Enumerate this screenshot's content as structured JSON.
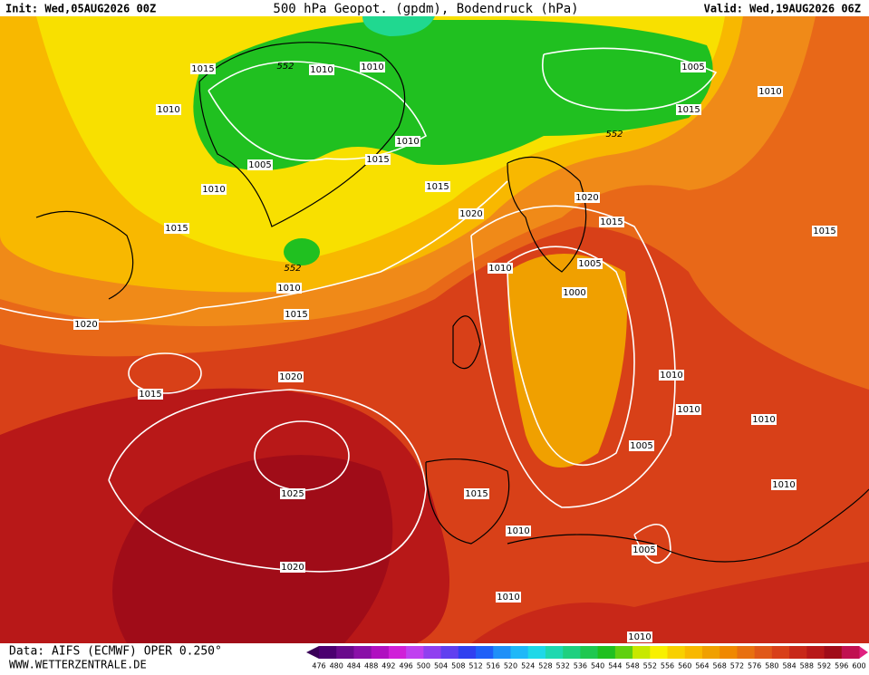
{
  "header": {
    "init": "Init: Wed,05AUG2026 00Z",
    "title": "500 hPa Geopot. (gpdm), Bodendruck (hPa)",
    "valid": "Valid: Wed,19AUG2026 06Z"
  },
  "map": {
    "isobar_labels": [
      "1015",
      "552",
      "1010",
      "1010",
      "1005",
      "1010",
      "1010",
      "1015",
      "552",
      "1010",
      "1015",
      "1005",
      "1010",
      "1015",
      "1020",
      "1020",
      "1015",
      "1015",
      "1015",
      "1005",
      "552",
      "1010",
      "1010",
      "1000",
      "1015",
      "1020",
      "1010",
      "1020",
      "1015",
      "1010",
      "1010",
      "1005",
      "1010",
      "1025",
      "1015",
      "1010",
      "1005",
      "1020",
      "1010",
      "1010"
    ]
  },
  "footer": {
    "data": "Data: AIFS (ECMWF) OPER 0.250°",
    "site": "WWW.WETTERZENTRALE.DE"
  },
  "colorbar": {
    "labels": [
      476,
      480,
      484,
      488,
      492,
      496,
      500,
      504,
      508,
      512,
      516,
      520,
      524,
      528,
      532,
      536,
      540,
      544,
      548,
      552,
      556,
      560,
      564,
      568,
      572,
      576,
      580,
      584,
      588,
      592,
      596,
      600
    ],
    "colors": [
      "#4b0070",
      "#6a0a8c",
      "#8a10a8",
      "#b010c0",
      "#d020d8",
      "#c040f0",
      "#9040f0",
      "#6040f0",
      "#3040f0",
      "#2060f8",
      "#2090f8",
      "#20b8f8",
      "#20d8e8",
      "#20d8b0",
      "#20d080",
      "#20c850",
      "#20c020",
      "#60d010",
      "#c8e800",
      "#f8f000",
      "#f8d000",
      "#f8b800",
      "#f0a000",
      "#f08800",
      "#e87010",
      "#e05818",
      "#d84018",
      "#c82818",
      "#b81818",
      "#a00c18",
      "#c01050"
    ]
  }
}
